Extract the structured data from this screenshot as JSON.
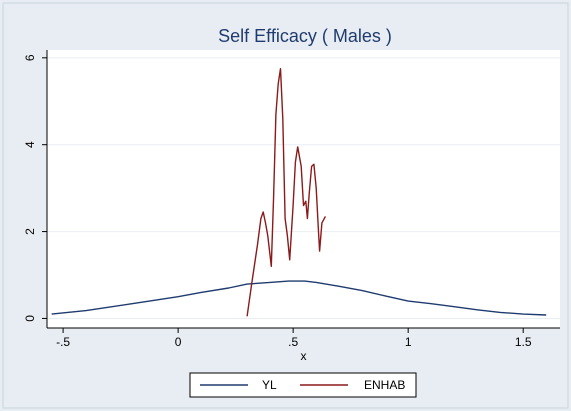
{
  "chart_data": {
    "type": "line",
    "title": "Self Efficacy ( Males )",
    "xlabel": "x",
    "ylabel": "",
    "xlim": [
      -0.57,
      1.66
    ],
    "ylim": [
      -0.22,
      6.18
    ],
    "xticks": [
      {
        "value": -0.5,
        "label": "-.5"
      },
      {
        "value": 0,
        "label": "0"
      },
      {
        "value": 0.5,
        "label": ".5"
      },
      {
        "value": 1,
        "label": "1"
      },
      {
        "value": 1.5,
        "label": "1.5"
      }
    ],
    "yticks": [
      {
        "value": 0,
        "label": "0"
      },
      {
        "value": 2,
        "label": "2"
      },
      {
        "value": 4,
        "label": "4"
      },
      {
        "value": 6,
        "label": "6"
      }
    ],
    "grid": "horizontal",
    "legend_position": "bottom",
    "series": [
      {
        "name": "YL",
        "color": "#1f3b6f",
        "points": [
          [
            -0.55,
            0.1
          ],
          [
            -0.4,
            0.18
          ],
          [
            -0.2,
            0.34
          ],
          [
            0.0,
            0.5
          ],
          [
            0.1,
            0.6
          ],
          [
            0.22,
            0.7
          ],
          [
            0.3,
            0.79
          ],
          [
            0.4,
            0.83
          ],
          [
            0.48,
            0.86
          ],
          [
            0.55,
            0.86
          ],
          [
            0.6,
            0.83
          ],
          [
            0.7,
            0.74
          ],
          [
            0.8,
            0.64
          ],
          [
            0.9,
            0.52
          ],
          [
            1.0,
            0.4
          ],
          [
            1.1,
            0.34
          ],
          [
            1.2,
            0.27
          ],
          [
            1.3,
            0.2
          ],
          [
            1.4,
            0.14
          ],
          [
            1.5,
            0.1
          ],
          [
            1.6,
            0.08
          ]
        ]
      },
      {
        "name": "ENHAB",
        "color": "#8b1a1a",
        "points": [
          [
            0.3,
            0.05
          ],
          [
            0.32,
            0.8
          ],
          [
            0.345,
            1.7
          ],
          [
            0.36,
            2.3
          ],
          [
            0.37,
            2.45
          ],
          [
            0.38,
            2.2
          ],
          [
            0.39,
            1.9
          ],
          [
            0.405,
            1.2
          ],
          [
            0.415,
            2.8
          ],
          [
            0.425,
            4.7
          ],
          [
            0.435,
            5.4
          ],
          [
            0.445,
            5.75
          ],
          [
            0.455,
            4.6
          ],
          [
            0.465,
            2.3
          ],
          [
            0.475,
            1.9
          ],
          [
            0.485,
            1.35
          ],
          [
            0.5,
            2.6
          ],
          [
            0.51,
            3.6
          ],
          [
            0.52,
            3.95
          ],
          [
            0.535,
            3.5
          ],
          [
            0.545,
            2.6
          ],
          [
            0.555,
            2.7
          ],
          [
            0.562,
            2.3
          ],
          [
            0.57,
            2.9
          ],
          [
            0.58,
            3.5
          ],
          [
            0.59,
            3.55
          ],
          [
            0.6,
            3.0
          ],
          [
            0.61,
            2.0
          ],
          [
            0.615,
            1.55
          ],
          [
            0.625,
            2.2
          ],
          [
            0.64,
            2.35
          ]
        ]
      }
    ]
  }
}
